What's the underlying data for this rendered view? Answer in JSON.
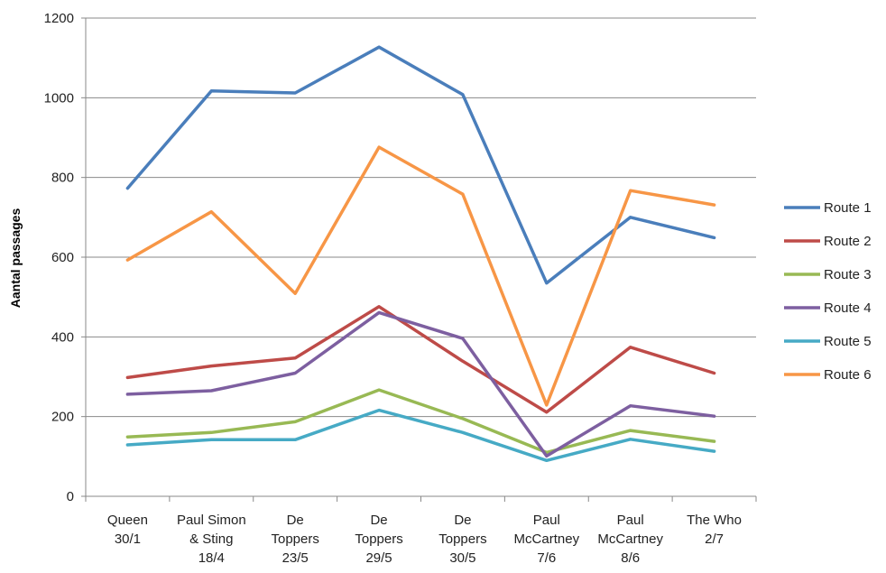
{
  "chart_data": {
    "type": "line",
    "title": "",
    "xlabel": "",
    "ylabel": "Aantal passages",
    "ylim": [
      0,
      1200
    ],
    "yticks": [
      0,
      200,
      400,
      600,
      800,
      1000,
      1200
    ],
    "grid": true,
    "legend_position": "right",
    "categories": [
      [
        "Queen",
        "30/1"
      ],
      [
        "Paul Simon",
        "& Sting",
        "18/4"
      ],
      [
        "De",
        "Toppers",
        "23/5"
      ],
      [
        "De",
        "Toppers",
        "29/5"
      ],
      [
        "De",
        "Toppers",
        "30/5"
      ],
      [
        "Paul",
        "McCartney",
        "7/6"
      ],
      [
        "Paul",
        "McCartney",
        "8/6"
      ],
      [
        "The Who",
        "2/7"
      ]
    ],
    "series": [
      {
        "name": "Route 1",
        "color": "#4a7ebb",
        "values": [
          773,
          1017,
          1012,
          1127,
          1008,
          535,
          700,
          649
        ]
      },
      {
        "name": "Route 2",
        "color": "#be4b48",
        "values": [
          298,
          327,
          347,
          476,
          339,
          211,
          374,
          309
        ]
      },
      {
        "name": "Route 3",
        "color": "#98b954",
        "values": [
          149,
          160,
          187,
          267,
          195,
          110,
          165,
          138
        ]
      },
      {
        "name": "Route 4",
        "color": "#7d5fa0",
        "values": [
          256,
          265,
          309,
          461,
          396,
          101,
          227,
          201
        ]
      },
      {
        "name": "Route 5",
        "color": "#46aac5",
        "values": [
          129,
          142,
          142,
          216,
          160,
          90,
          143,
          113
        ]
      },
      {
        "name": "Route 6",
        "color": "#f79646",
        "values": [
          593,
          714,
          509,
          876,
          758,
          229,
          767,
          731
        ]
      }
    ]
  }
}
